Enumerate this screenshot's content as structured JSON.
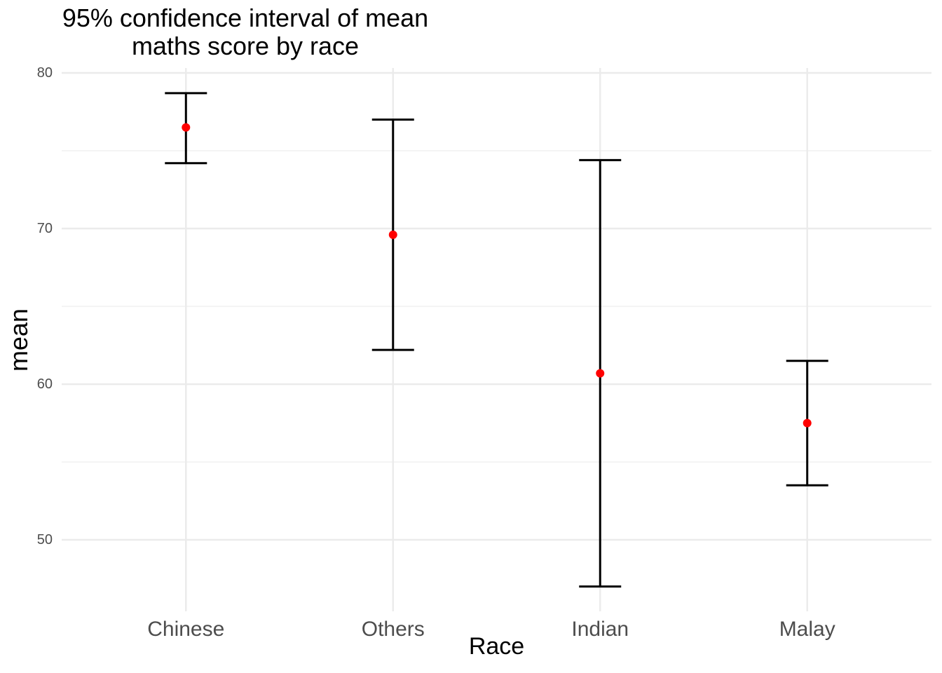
{
  "chart_data": {
    "type": "scatter",
    "subtype": "point-with-95ci-errorbars",
    "title_lines": [
      "95% confidence interval of mean",
      "maths score by race"
    ],
    "title": "95% confidence interval of mean\nmaths score by race",
    "xlabel": "Race",
    "ylabel": "mean",
    "categories": [
      "Chinese",
      "Others",
      "Indian",
      "Malay"
    ],
    "series": [
      {
        "name": "mean maths score",
        "values": [
          76.5,
          69.6,
          60.7,
          57.5
        ],
        "ci_lower": [
          74.2,
          62.2,
          47.0,
          53.5
        ],
        "ci_upper": [
          78.7,
          77.0,
          74.4,
          61.5
        ]
      }
    ],
    "ylim": [
      45.4,
      80.3
    ],
    "yticks": [
      "50",
      "60",
      "70",
      "80"
    ],
    "ytick_values": [
      50,
      60,
      70,
      80
    ],
    "ytick_minor_values": [
      55,
      65,
      75
    ],
    "grid": "on",
    "legend": "none",
    "colors": {
      "point": "#FF0000",
      "errorbar": "#000000",
      "grid_major": "#EBEBEB",
      "grid_minor": "#F0F0F0",
      "axis_text": "#4D4D4D",
      "title_text": "#000000",
      "background": "#FFFFFF"
    }
  }
}
